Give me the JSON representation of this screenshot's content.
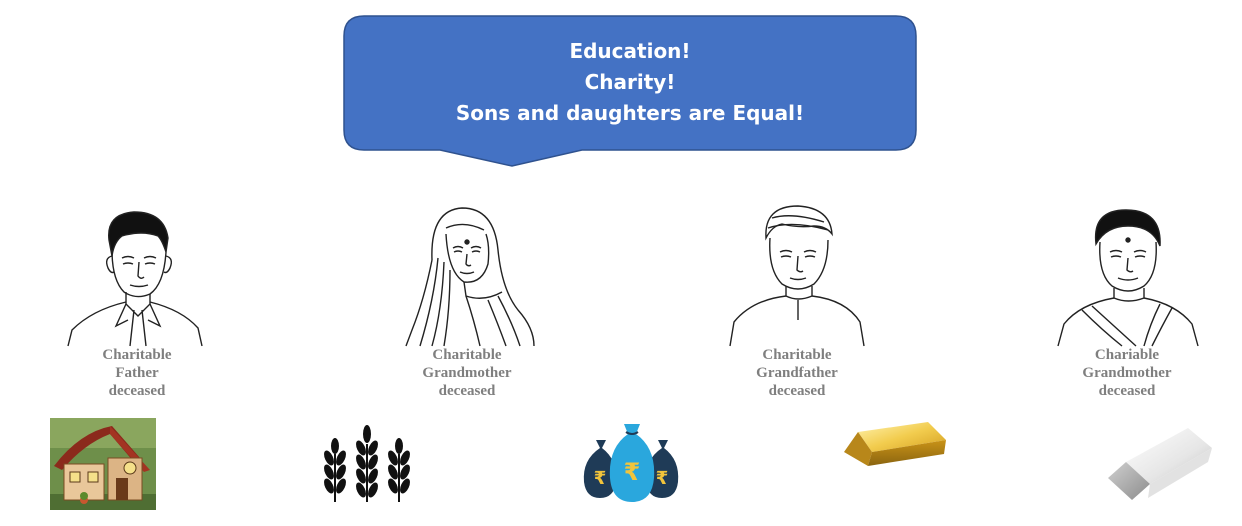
{
  "callout": {
    "lines": [
      "Education!",
      "Charity!",
      "Sons and daughters are Equal!"
    ],
    "fill_color": "#4472c4",
    "text_color": "#ffffff"
  },
  "people": [
    {
      "icon": "man-in-suit-icon",
      "caption": [
        "Charitable",
        "Father",
        "deceased"
      ]
    },
    {
      "icon": "woman-in-sari-icon",
      "caption": [
        "Charitable",
        "Grandmother",
        "deceased"
      ]
    },
    {
      "icon": "man-in-turban-icon",
      "caption": [
        "Charitable",
        "Grandfather",
        "deceased"
      ]
    },
    {
      "icon": "elderly-woman-icon",
      "caption": [
        "Chariable",
        "Grandmother",
        "deceased"
      ]
    }
  ],
  "assets": [
    {
      "icon": "house-icon"
    },
    {
      "icon": "wheat-crop-icon"
    },
    {
      "icon": "rupee-money-bags-icon",
      "symbol": "₹"
    },
    {
      "icon": "gold-bar-icon"
    },
    {
      "icon": "silver-bar-icon"
    }
  ],
  "colors": {
    "caption": "#7f7f7f",
    "gold": "#e3b630",
    "money_bag_dark": "#1f3b57",
    "money_bag_light": "#2aa7dd"
  }
}
